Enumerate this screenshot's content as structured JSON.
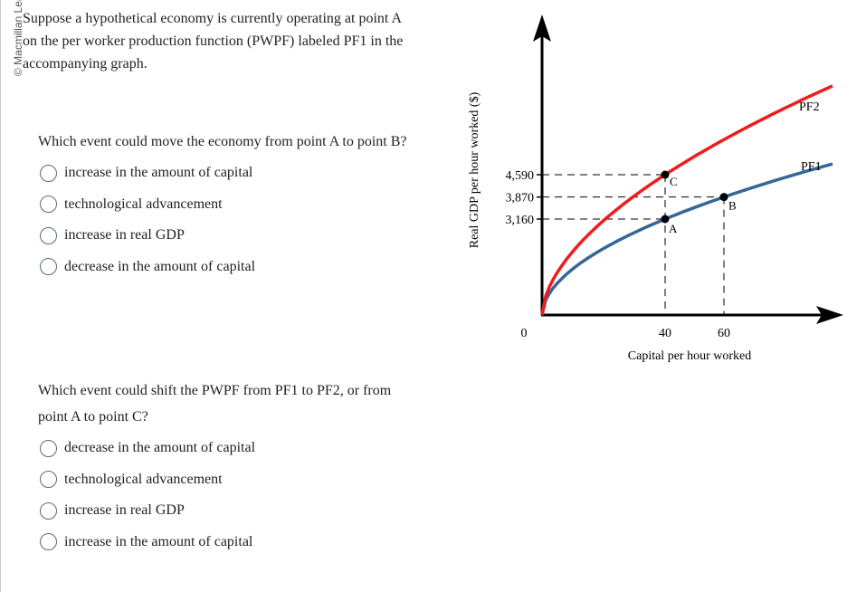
{
  "copyright": "© Macmillan Learning",
  "intro": "Suppose a hypothetical economy is currently operating at point A on the per worker production function (PWPF) labeled PF1 in the accompanying graph.",
  "questions": [
    {
      "text": "Which event could move the economy from point A to point B?",
      "options": [
        {
          "label": "increase in the amount of capital"
        },
        {
          "label": "technological advancement"
        },
        {
          "label": "increase in real GDP"
        },
        {
          "label": "decrease in the amount of capital"
        }
      ]
    },
    {
      "text": "Which event could shift the PWPF from PF1 to PF2, or from point A to point C?",
      "options": [
        {
          "label": "decrease in the amount of capital"
        },
        {
          "label": "technological advancement"
        },
        {
          "label": "increase in real GDP"
        },
        {
          "label": "increase in the amount of capital"
        }
      ]
    }
  ],
  "chart_data": {
    "type": "line",
    "xlabel": "Capital per hour worked",
    "ylabel": "Real GDP per hour worked ($)",
    "origin_label": "0",
    "x_ticks": [
      40,
      60
    ],
    "y_ticks": [
      3160,
      3870,
      4590
    ],
    "x_tick_labels": [
      "40",
      "60"
    ],
    "y_tick_labels": [
      "3,160",
      "3,870",
      "4,590"
    ],
    "series": [
      {
        "name": "PF1",
        "color": "#356799",
        "x": [
          0,
          40,
          60,
          95
        ],
        "y": [
          0,
          3160,
          3870,
          4950
        ]
      },
      {
        "name": "PF2",
        "color": "#ee1c1c",
        "x": [
          0,
          40,
          95
        ],
        "y": [
          0,
          4590,
          6700
        ]
      }
    ],
    "points": [
      {
        "label": "A",
        "x": 40,
        "y": 3160
      },
      {
        "label": "B",
        "x": 60,
        "y": 3870
      },
      {
        "label": "C",
        "x": 40,
        "y": 4590
      }
    ]
  }
}
